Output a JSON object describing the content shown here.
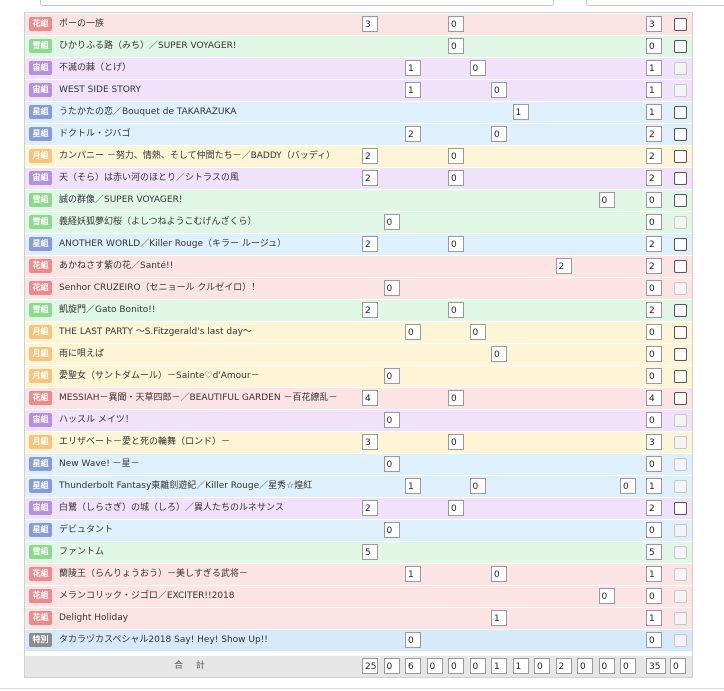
{
  "troupe_styles": {
    "花組": {
      "row": "#fde4e4",
      "badge": "#f08a8a"
    },
    "雪組": {
      "row": "#e0f7e6",
      "badge": "#8fd98e"
    },
    "宙組": {
      "row": "#efe2fa",
      "badge": "#b58ee6"
    },
    "星組": {
      "row": "#def0fb",
      "badge": "#8a98e2"
    },
    "月組": {
      "row": "#fef4d6",
      "badge": "#f8c47c"
    },
    "特別": {
      "row": "#d6e9fb",
      "badge": "#8c8c8c"
    }
  },
  "rows": [
    {
      "troupe": "花組",
      "title": "ポーの一族",
      "values": [
        {
          "col": 0,
          "v": "3"
        },
        {
          "col": 4,
          "v": "0"
        }
      ],
      "total": "3",
      "checkbox_enabled": true
    },
    {
      "troupe": "雪組",
      "title": "ひかりふる路（みち）／SUPER VOYAGER!",
      "values": [
        {
          "col": 4,
          "v": "0"
        }
      ],
      "total": "0",
      "checkbox_enabled": true
    },
    {
      "troupe": "宙組",
      "title": "不滅の棘（とげ）",
      "values": [
        {
          "col": 2,
          "v": "1"
        },
        {
          "col": 5,
          "v": "0"
        }
      ],
      "total": "1",
      "checkbox_enabled": false
    },
    {
      "troupe": "宙組",
      "title": "WEST SIDE STORY",
      "values": [
        {
          "col": 2,
          "v": "1"
        },
        {
          "col": 6,
          "v": "0"
        }
      ],
      "total": "1",
      "checkbox_enabled": false
    },
    {
      "troupe": "星組",
      "title": "うたかたの恋／Bouquet de TAKARAZUKA",
      "values": [
        {
          "col": 7,
          "v": "1"
        }
      ],
      "total": "1",
      "checkbox_enabled": true
    },
    {
      "troupe": "星組",
      "title": "ドクトル・ジバゴ",
      "values": [
        {
          "col": 2,
          "v": "2"
        },
        {
          "col": 6,
          "v": "0"
        }
      ],
      "total": "2",
      "checkbox_enabled": true
    },
    {
      "troupe": "月組",
      "title": "カンパニー －努力、情熱、そして仲間たち－／BADDY（バッディ）",
      "values": [
        {
          "col": 0,
          "v": "2"
        },
        {
          "col": 4,
          "v": "0"
        }
      ],
      "total": "2",
      "checkbox_enabled": true
    },
    {
      "troupe": "宙組",
      "title": "天（そら）は赤い河のほとり／シトラスの風",
      "values": [
        {
          "col": 0,
          "v": "2"
        },
        {
          "col": 4,
          "v": "0"
        }
      ],
      "total": "2",
      "checkbox_enabled": true
    },
    {
      "troupe": "雪組",
      "title": "誠の群像／SUPER VOYAGER!",
      "values": [
        {
          "col": 11,
          "v": "0"
        }
      ],
      "total": "0",
      "checkbox_enabled": true
    },
    {
      "troupe": "雪組",
      "title": "義経妖狐夢幻桜（よしつねようこむげんざくら）",
      "values": [
        {
          "col": 1,
          "v": "0"
        }
      ],
      "total": "0",
      "checkbox_enabled": false
    },
    {
      "troupe": "星組",
      "title": "ANOTHER WORLD／Killer Rouge（キラー ルージュ）",
      "values": [
        {
          "col": 0,
          "v": "2"
        },
        {
          "col": 4,
          "v": "0"
        }
      ],
      "total": "2",
      "checkbox_enabled": true
    },
    {
      "troupe": "花組",
      "title": "あかねさす紫の花／Santé!!",
      "values": [
        {
          "col": 9,
          "v": "2"
        }
      ],
      "total": "2",
      "checkbox_enabled": true
    },
    {
      "troupe": "花組",
      "title": "Senhor CRUZEIRO（セニョール クルゼイロ）！",
      "values": [
        {
          "col": 1,
          "v": "0"
        }
      ],
      "total": "0",
      "checkbox_enabled": false
    },
    {
      "troupe": "雪組",
      "title": "凱旋門／Gato Bonito!!",
      "values": [
        {
          "col": 0,
          "v": "2"
        },
        {
          "col": 4,
          "v": "0"
        }
      ],
      "total": "2",
      "checkbox_enabled": true
    },
    {
      "troupe": "月組",
      "title": "THE LAST PARTY ～S.Fitzgerald's last day～",
      "values": [
        {
          "col": 2,
          "v": "0"
        },
        {
          "col": 5,
          "v": "0"
        }
      ],
      "total": "0",
      "checkbox_enabled": true
    },
    {
      "troupe": "月組",
      "title": "雨に唄えば",
      "values": [
        {
          "col": 6,
          "v": "0"
        }
      ],
      "total": "0",
      "checkbox_enabled": true
    },
    {
      "troupe": "月組",
      "title": "愛聖女（サントダムール）－Sainte♡d'Amour－",
      "values": [
        {
          "col": 1,
          "v": "0"
        }
      ],
      "total": "0",
      "checkbox_enabled": true
    },
    {
      "troupe": "花組",
      "title": "MESSIAH－異聞・天草四郎－／BEAUTIFUL GARDEN －百花繚乱－",
      "values": [
        {
          "col": 0,
          "v": "4"
        },
        {
          "col": 4,
          "v": "0"
        }
      ],
      "total": "4",
      "checkbox_enabled": true
    },
    {
      "troupe": "宙組",
      "title": "ハッスル メイツ！",
      "values": [
        {
          "col": 1,
          "v": "0"
        }
      ],
      "total": "0",
      "checkbox_enabled": false
    },
    {
      "troupe": "月組",
      "title": "エリザベート－愛と死の輪舞（ロンド）－",
      "values": [
        {
          "col": 0,
          "v": "3"
        },
        {
          "col": 4,
          "v": "0"
        }
      ],
      "total": "3",
      "checkbox_enabled": false
    },
    {
      "troupe": "星組",
      "title": "New Wave! －星－",
      "values": [
        {
          "col": 1,
          "v": "0"
        }
      ],
      "total": "0",
      "checkbox_enabled": false
    },
    {
      "troupe": "星組",
      "title": "Thunderbolt Fantasy東離劍遊紀／Killer Rouge／星秀☆煌紅",
      "values": [
        {
          "col": 2,
          "v": "1"
        },
        {
          "col": 5,
          "v": "0"
        },
        {
          "col": 12,
          "v": "0"
        }
      ],
      "total": "1",
      "checkbox_enabled": false
    },
    {
      "troupe": "宙組",
      "title": "白鷺（しらさぎ）の城（しろ）／異人たちのルネサンス",
      "values": [
        {
          "col": 0,
          "v": "2"
        },
        {
          "col": 4,
          "v": "0"
        }
      ],
      "total": "2",
      "checkbox_enabled": true
    },
    {
      "troupe": "星組",
      "title": "デビュタント",
      "values": [
        {
          "col": 1,
          "v": "0"
        }
      ],
      "total": "0",
      "checkbox_enabled": false
    },
    {
      "troupe": "雪組",
      "title": "ファントム",
      "values": [
        {
          "col": 0,
          "v": "5"
        }
      ],
      "total": "5",
      "checkbox_enabled": false
    },
    {
      "troupe": "花組",
      "title": "蘭陵王（らんりょうおう）－美しすぎる武将－",
      "values": [
        {
          "col": 2,
          "v": "1"
        },
        {
          "col": 6,
          "v": "0"
        }
      ],
      "total": "1",
      "checkbox_enabled": false
    },
    {
      "troupe": "花組",
      "title": "メランコリック・ジゴロ／EXCITER!!2018",
      "values": [
        {
          "col": 11,
          "v": "0"
        }
      ],
      "total": "0",
      "checkbox_enabled": false
    },
    {
      "troupe": "花組",
      "title": "Delight Holiday",
      "values": [
        {
          "col": 6,
          "v": "1"
        }
      ],
      "total": "1",
      "checkbox_enabled": false
    },
    {
      "troupe": "特別",
      "title": "タカラヅカスペシャル2018 Say! Hey! Show Up!!",
      "values": [
        {
          "col": 2,
          "v": "0"
        }
      ],
      "total": "0",
      "checkbox_enabled": false
    }
  ],
  "summary": {
    "label": "合 計",
    "values": [
      "25",
      "0",
      "6",
      "0",
      "0",
      "0",
      "1",
      "1",
      "0",
      "2",
      "0",
      "0",
      "0",
      "35",
      "0"
    ]
  }
}
